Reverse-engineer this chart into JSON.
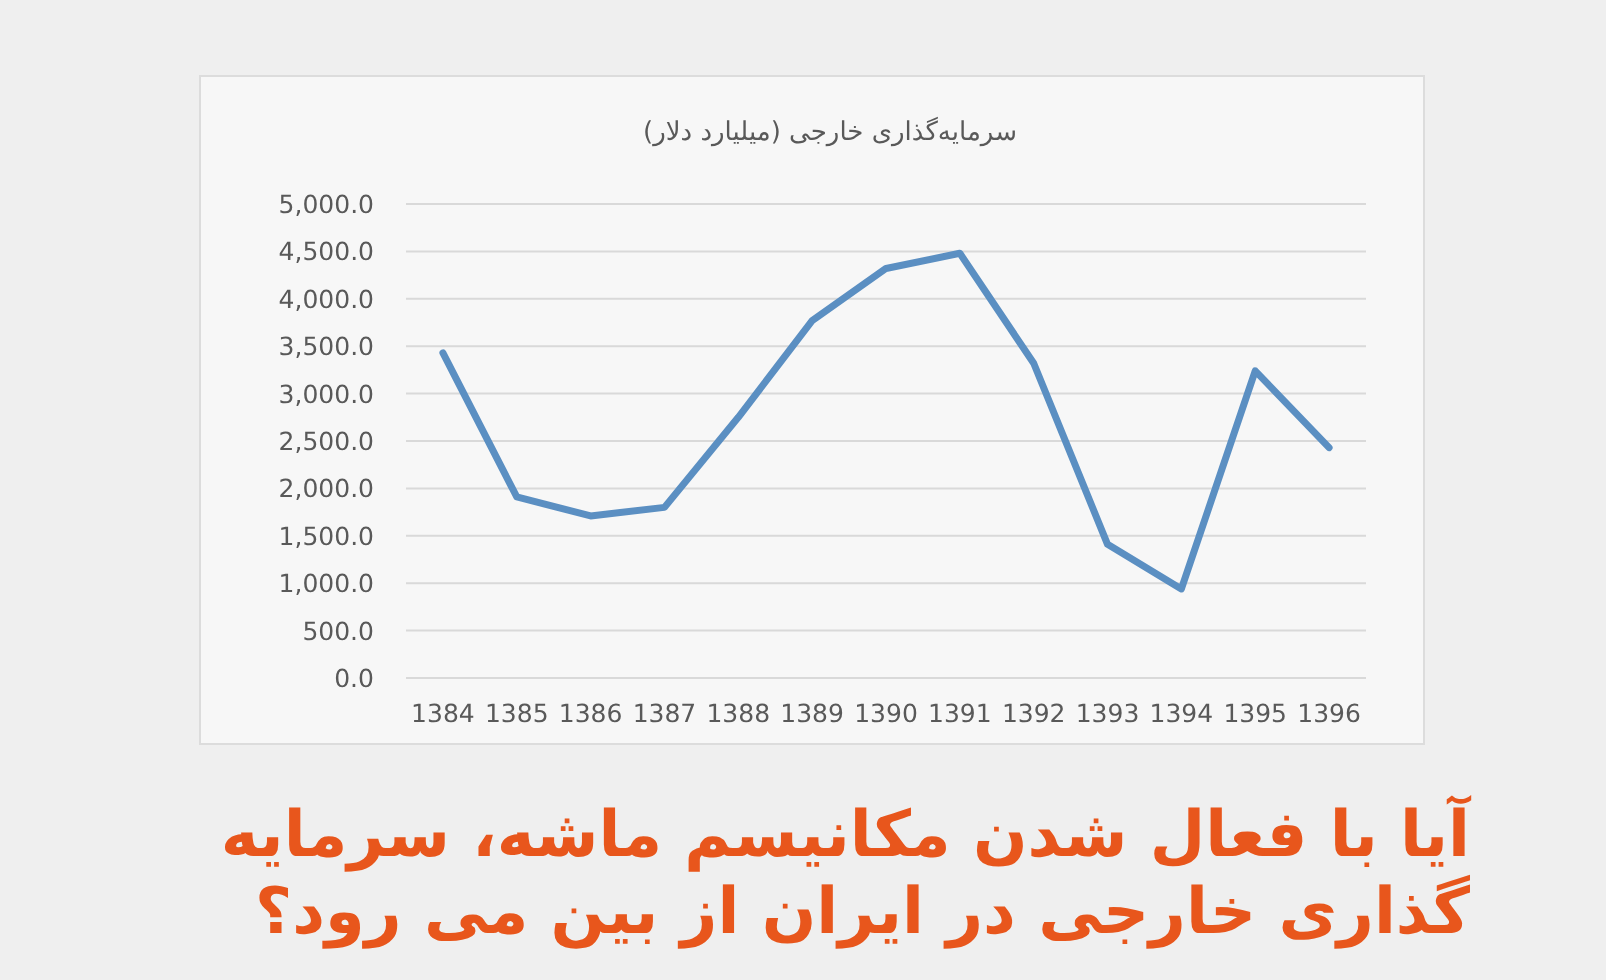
{
  "chart_data": {
    "type": "line",
    "title": "سرمایه‌گذاری خارجی (میلیارد دلار)",
    "annotations": [
      "آیا با فعال شدن مکانیسم ماشه، سرمایه گذاری خارجی در ایران از بین می رود؟"
    ],
    "categories": [
      "1384",
      "1385",
      "1386",
      "1387",
      "1388",
      "1389",
      "1390",
      "1391",
      "1392",
      "1393",
      "1394",
      "1395",
      "1396"
    ],
    "series": [
      {
        "color": "#5b8fc2",
        "values": [
          3430,
          1910,
          1710,
          1800,
          2750,
          3770,
          4320,
          4480,
          3320,
          1410,
          940,
          3240,
          2430
        ]
      }
    ],
    "ylim": [
      0,
      5000
    ],
    "yticks": [
      {
        "value": 0,
        "label": "0.0"
      },
      {
        "value": 500,
        "label": "500.0"
      },
      {
        "value": 1000,
        "label": "1,000.0"
      },
      {
        "value": 1500,
        "label": "1,500.0"
      },
      {
        "value": 2000,
        "label": "2,000.0"
      },
      {
        "value": 2500,
        "label": "2,500.0"
      },
      {
        "value": 3000,
        "label": "3,000.0"
      },
      {
        "value": 3500,
        "label": "3,500.0"
      },
      {
        "value": 4000,
        "label": "4,000.0"
      },
      {
        "value": 4500,
        "label": "4,500.0"
      },
      {
        "value": 5000,
        "label": "5,000.0"
      }
    ],
    "grid": "y"
  }
}
